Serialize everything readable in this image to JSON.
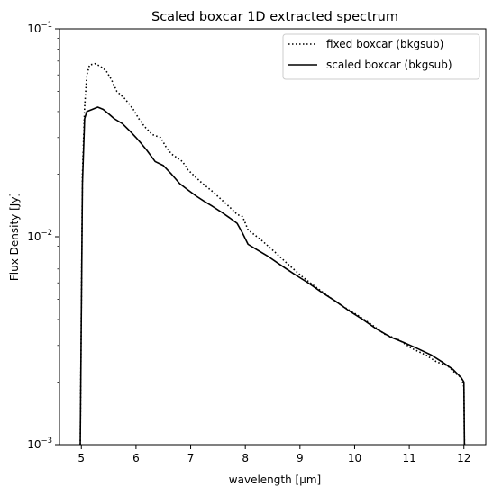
{
  "chart_data": {
    "type": "line",
    "title": "Scaled boxcar 1D extracted spectrum",
    "xlabel": "wavelength [μm]",
    "ylabel": "Flux Density [Jy]",
    "xlim": [
      4.6,
      12.4
    ],
    "ylim": [
      0.001,
      0.1
    ],
    "yscale": "log",
    "grid": false,
    "legend_position": "top-right",
    "x_ticks": [
      5,
      6,
      7,
      8,
      9,
      10,
      11,
      12
    ],
    "x_tick_labels": [
      "5",
      "6",
      "7",
      "8",
      "9",
      "10",
      "11",
      "12"
    ],
    "y_tick_labels": [
      {
        "base": "10",
        "exp": "−3"
      },
      {
        "base": "10",
        "exp": "−2"
      },
      {
        "base": "10",
        "exp": "−1"
      }
    ],
    "series": [
      {
        "name": "fixed boxcar (bkgsub)",
        "style": "dotted",
        "color": "#000000",
        "points": [
          [
            4.98,
            0.001
          ],
          [
            5.02,
            0.02
          ],
          [
            5.06,
            0.042
          ],
          [
            5.1,
            0.06
          ],
          [
            5.15,
            0.067
          ],
          [
            5.25,
            0.068
          ],
          [
            5.35,
            0.066
          ],
          [
            5.45,
            0.063
          ],
          [
            5.55,
            0.057
          ],
          [
            5.65,
            0.05
          ],
          [
            5.8,
            0.046
          ],
          [
            5.95,
            0.041
          ],
          [
            6.05,
            0.037
          ],
          [
            6.15,
            0.034
          ],
          [
            6.3,
            0.031
          ],
          [
            6.45,
            0.03
          ],
          [
            6.55,
            0.027
          ],
          [
            6.65,
            0.025
          ],
          [
            6.75,
            0.024
          ],
          [
            6.85,
            0.023
          ],
          [
            6.95,
            0.021
          ],
          [
            7.05,
            0.0198
          ],
          [
            7.2,
            0.0182
          ],
          [
            7.4,
            0.0165
          ],
          [
            7.55,
            0.0152
          ],
          [
            7.7,
            0.014
          ],
          [
            7.85,
            0.0128
          ],
          [
            7.95,
            0.0125
          ],
          [
            8.05,
            0.0108
          ],
          [
            8.3,
            0.0096
          ],
          [
            8.55,
            0.0084
          ],
          [
            8.8,
            0.0073
          ],
          [
            9.05,
            0.0064
          ],
          [
            9.3,
            0.0057
          ],
          [
            9.55,
            0.0051
          ],
          [
            9.8,
            0.0046
          ],
          [
            10.05,
            0.0042
          ],
          [
            10.3,
            0.0038
          ],
          [
            10.55,
            0.0034
          ],
          [
            10.8,
            0.0032
          ],
          [
            11.05,
            0.0029
          ],
          [
            11.3,
            0.0027
          ],
          [
            11.5,
            0.0025
          ],
          [
            11.7,
            0.0024
          ],
          [
            11.85,
            0.0022
          ],
          [
            11.95,
            0.0021
          ],
          [
            12.0,
            0.0019
          ],
          [
            12.01,
            0.001
          ]
        ]
      },
      {
        "name": "scaled boxcar (bkgsub)",
        "style": "solid",
        "color": "#000000",
        "points": [
          [
            4.98,
            0.001
          ],
          [
            5.02,
            0.018
          ],
          [
            5.06,
            0.037
          ],
          [
            5.1,
            0.04
          ],
          [
            5.2,
            0.041
          ],
          [
            5.3,
            0.042
          ],
          [
            5.4,
            0.041
          ],
          [
            5.5,
            0.039
          ],
          [
            5.6,
            0.037
          ],
          [
            5.75,
            0.035
          ],
          [
            5.9,
            0.032
          ],
          [
            6.0,
            0.03
          ],
          [
            6.1,
            0.028
          ],
          [
            6.2,
            0.026
          ],
          [
            6.35,
            0.023
          ],
          [
            6.5,
            0.022
          ],
          [
            6.65,
            0.02
          ],
          [
            6.8,
            0.018
          ],
          [
            6.95,
            0.0168
          ],
          [
            7.1,
            0.0157
          ],
          [
            7.25,
            0.0148
          ],
          [
            7.4,
            0.014
          ],
          [
            7.55,
            0.0132
          ],
          [
            7.7,
            0.0124
          ],
          [
            7.85,
            0.0116
          ],
          [
            7.95,
            0.0104
          ],
          [
            8.05,
            0.0092
          ],
          [
            8.2,
            0.0087
          ],
          [
            8.4,
            0.0081
          ],
          [
            8.65,
            0.0073
          ],
          [
            8.9,
            0.0066
          ],
          [
            9.15,
            0.006
          ],
          [
            9.4,
            0.0054
          ],
          [
            9.65,
            0.0049
          ],
          [
            9.9,
            0.0044
          ],
          [
            10.15,
            0.004
          ],
          [
            10.4,
            0.0036
          ],
          [
            10.65,
            0.0033
          ],
          [
            10.9,
            0.0031
          ],
          [
            11.15,
            0.0029
          ],
          [
            11.4,
            0.0027
          ],
          [
            11.6,
            0.0025
          ],
          [
            11.8,
            0.0023
          ],
          [
            11.95,
            0.0021
          ],
          [
            12.0,
            0.002
          ],
          [
            12.01,
            0.001
          ]
        ]
      }
    ]
  }
}
